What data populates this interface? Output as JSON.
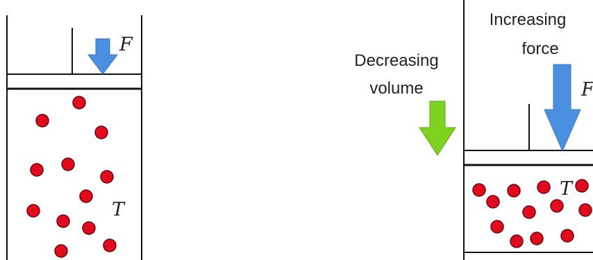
{
  "left_panel": {
    "force_symbol": "F",
    "temperature_symbol": "T"
  },
  "right_panel": {
    "volume_label_line1": "Decreasing",
    "volume_label_line2": "volume",
    "force_label_line1": "Increasing",
    "force_label_line2": "force",
    "force_symbol": "F",
    "temperature_symbol": "T"
  },
  "colors": {
    "particle": "#e00c1e",
    "force_arrow": "#4a8fe0",
    "volume_arrow": "#7dd31f",
    "outline": "#111111"
  },
  "icons": {
    "left_force": "down-arrow-icon",
    "right_force": "down-arrow-icon",
    "volume": "down-arrow-icon",
    "particles": "circle-icon"
  }
}
